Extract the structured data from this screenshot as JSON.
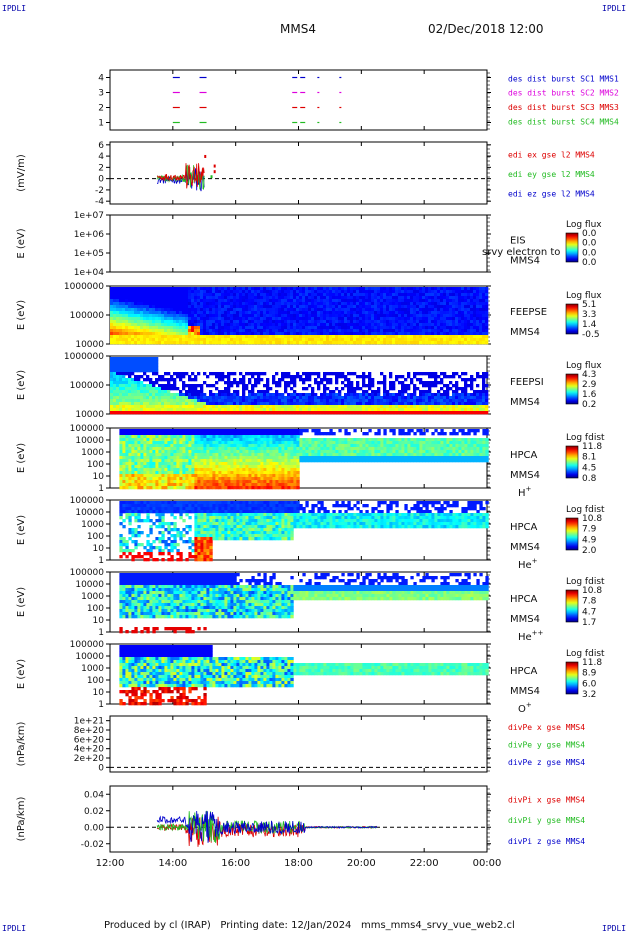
{
  "header": {
    "corner_label": "IPDLI",
    "spacecraft": "MMS4",
    "datetime": "02/Dec/2018 12:00"
  },
  "footer": {
    "produced_by": "Produced by cl (IRAP)",
    "printing_date": "Printing date: 12/Jan/2024",
    "file": "mms_mms4_srvy_vue_web2.cl"
  },
  "colors": {
    "red": "#dd0000",
    "green": "#22bb22",
    "blue": "#0000cc",
    "magenta": "#dd00dd"
  },
  "chart_data": [
    {
      "id": "p1",
      "type": "scatter",
      "ylabel": "",
      "ylim": [
        0.5,
        4.5
      ],
      "yticks": [
        "1",
        "2",
        "3",
        "4"
      ],
      "ytick_values": [
        1,
        2,
        3,
        4
      ],
      "series": [
        {
          "name": "des dist burst SC1 MMS1",
          "color": "#0000cc",
          "y": 4,
          "x": [
            14.0,
            14.85,
            17.8,
            18.6,
            19.3
          ]
        },
        {
          "name": "des dist burst SC2 MMS2",
          "color": "#dd00dd",
          "y": 3,
          "x": [
            14.0,
            14.85,
            17.8,
            18.6,
            19.3
          ]
        },
        {
          "name": "des dist burst SC3 MMS3",
          "color": "#dd0000",
          "y": 2,
          "x": [
            14.0,
            14.85,
            17.8,
            18.6,
            19.3
          ]
        },
        {
          "name": "des dist burst SC4 MMS4",
          "color": "#22bb22",
          "y": 1,
          "x": [
            14.0,
            14.85,
            17.8,
            18.6,
            19.3
          ]
        }
      ]
    },
    {
      "id": "p2",
      "type": "line",
      "ylabel": "(mV/m)",
      "ylim": [
        -4.5,
        6.5
      ],
      "yticks": [
        "6",
        "4",
        "2",
        "0",
        "-2",
        "-4"
      ],
      "ytick_values": [
        6,
        4,
        2,
        0,
        -2,
        -4
      ],
      "reference_line": 0,
      "series": [
        {
          "name": "edi ex gse l2 MMS4",
          "color": "#dd0000"
        },
        {
          "name": "edi ey gse l2 MMS4",
          "color": "#22bb22"
        },
        {
          "name": "edi ez gse l2 MMS4",
          "color": "#0000cc"
        }
      ]
    },
    {
      "id": "p3",
      "type": "heatmap",
      "ylabel": "E (eV)",
      "log": true,
      "ylim": [
        10000.0,
        10000000.0
      ],
      "yticks": [
        "1e+07",
        "1e+06",
        "1e+05",
        "1e+04"
      ],
      "ytick_values": [
        10000000.0,
        1000000.0,
        100000.0,
        10000.0
      ],
      "instrument": "EIS",
      "subtitle": "srvy electron to",
      "spacecraft": "MMS4",
      "cbar_title": "Log flux",
      "cbar_ticks": [
        "0.0",
        "0.0",
        "0.0",
        "0.0"
      ],
      "empty": true
    },
    {
      "id": "p4",
      "type": "heatmap",
      "ylabel": "E (eV)",
      "log": true,
      "ylim": [
        10000.0,
        1000000.0
      ],
      "yticks": [
        "1000000",
        "100000",
        "10000"
      ],
      "ytick_values": [
        1000000.0,
        100000.0,
        10000.0
      ],
      "instrument": "FEEPSE",
      "spacecraft": "MMS4",
      "cbar_title": "Log flux",
      "cbar_ticks": [
        "5.1",
        "3.3",
        "1.4",
        "-0.5"
      ]
    },
    {
      "id": "p5",
      "type": "heatmap",
      "ylabel": "E (eV)",
      "log": true,
      "ylim": [
        10000.0,
        1000000.0
      ],
      "yticks": [
        "1000000",
        "100000",
        "10000"
      ],
      "ytick_values": [
        1000000.0,
        100000.0,
        10000.0
      ],
      "instrument": "FEEPSI",
      "spacecraft": "MMS4",
      "cbar_title": "Log flux",
      "cbar_ticks": [
        "4.3",
        "2.9",
        "1.6",
        "0.2"
      ]
    },
    {
      "id": "p6",
      "type": "heatmap",
      "ylabel": "E (eV)",
      "log": true,
      "ylim": [
        1,
        100000.0
      ],
      "yticks": [
        "100000",
        "10000",
        "1000",
        "100",
        "10",
        "1"
      ],
      "ytick_values": [
        100000.0,
        10000.0,
        1000.0,
        100.0,
        10,
        1
      ],
      "instrument": "HPCA",
      "spacecraft": "MMS4",
      "species": "H",
      "species_charge": "+",
      "cbar_title": "Log fdist",
      "cbar_ticks": [
        "11.8",
        "8.1",
        "4.5",
        "0.8"
      ]
    },
    {
      "id": "p7",
      "type": "heatmap",
      "ylabel": "E (eV)",
      "log": true,
      "ylim": [
        1,
        100000.0
      ],
      "yticks": [
        "100000",
        "10000",
        "1000",
        "100",
        "10",
        "1"
      ],
      "ytick_values": [
        100000.0,
        10000.0,
        1000.0,
        100.0,
        10,
        1
      ],
      "instrument": "HPCA",
      "spacecraft": "MMS4",
      "species": "He",
      "species_charge": "+",
      "cbar_title": "Log fdist",
      "cbar_ticks": [
        "10.8",
        "7.9",
        "4.9",
        "2.0"
      ]
    },
    {
      "id": "p8",
      "type": "heatmap",
      "ylabel": "E (eV)",
      "log": true,
      "ylim": [
        1,
        100000.0
      ],
      "yticks": [
        "100000",
        "10000",
        "1000",
        "100",
        "10",
        "1"
      ],
      "ytick_values": [
        100000.0,
        10000.0,
        1000.0,
        100.0,
        10,
        1
      ],
      "instrument": "HPCA",
      "spacecraft": "MMS4",
      "species": "He",
      "species_charge": "++",
      "cbar_title": "Log fdist",
      "cbar_ticks": [
        "10.8",
        "7.8",
        "4.7",
        "1.7"
      ]
    },
    {
      "id": "p9",
      "type": "heatmap",
      "ylabel": "E (eV)",
      "log": true,
      "ylim": [
        1,
        100000.0
      ],
      "yticks": [
        "100000",
        "10000",
        "1000",
        "100",
        "10",
        "1"
      ],
      "ytick_values": [
        100000.0,
        10000.0,
        1000.0,
        100.0,
        10,
        1
      ],
      "instrument": "HPCA",
      "spacecraft": "MMS4",
      "species": "O",
      "species_charge": "+",
      "cbar_title": "Log fdist",
      "cbar_ticks": [
        "11.8",
        "8.9",
        "6.0",
        "3.2"
      ]
    },
    {
      "id": "p10",
      "type": "line",
      "ylabel": "(nPa/km)",
      "ylim": [
        -1e+20,
        1.1e+21
      ],
      "yticks": [
        "1e+21",
        "8e+20",
        "6e+20",
        "4e+20",
        "2e+20",
        "0"
      ],
      "ytick_values": [
        1e+21,
        8e+20,
        6e+20,
        4e+20,
        2e+20,
        0
      ],
      "reference_line": 0,
      "series": [
        {
          "name": "divPe x gse MMS4",
          "color": "#dd0000"
        },
        {
          "name": "divPe y gse MMS4",
          "color": "#22bb22"
        },
        {
          "name": "divPe z gse MMS4",
          "color": "#0000cc"
        }
      ]
    },
    {
      "id": "p11",
      "type": "line",
      "ylabel": "(nPa/km)",
      "ylim": [
        -0.03,
        0.05
      ],
      "yticks": [
        "0.04",
        "0.02",
        "0.00",
        "-0.02"
      ],
      "ytick_values": [
        0.04,
        0.02,
        0.0,
        -0.02
      ],
      "reference_line": 0,
      "series": [
        {
          "name": "divPi x gse MMS4",
          "color": "#dd0000"
        },
        {
          "name": "divPi y gse MMS4",
          "color": "#22bb22"
        },
        {
          "name": "divPi z gse MMS4",
          "color": "#0000cc"
        }
      ]
    }
  ],
  "xaxis": {
    "ticks": [
      "12:00",
      "14:00",
      "16:00",
      "18:00",
      "20:00",
      "22:00",
      "00:00"
    ],
    "tick_hours": [
      12,
      14,
      16,
      18,
      20,
      22,
      24
    ],
    "range_hours": [
      12,
      24
    ]
  }
}
